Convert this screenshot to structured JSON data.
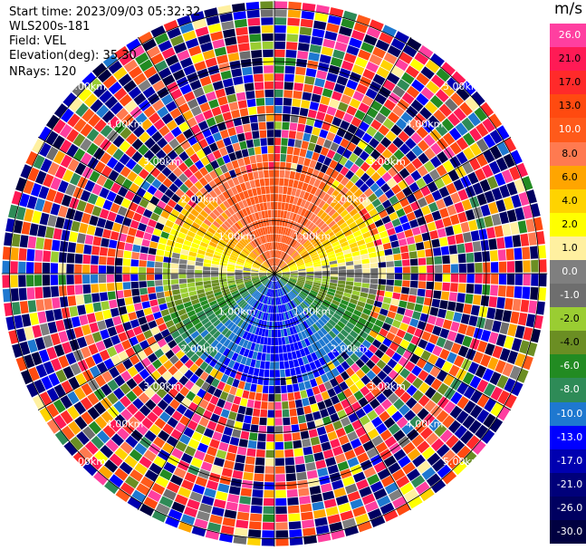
{
  "header": {
    "start_time": "Start time: 2023/09/03 05:32:32",
    "instrument": "WLS200s-181",
    "field": "Field: VEL",
    "elevation": "Elevation(deg): 35.30",
    "nrays": "NRays: 120"
  },
  "colorbar": {
    "unit": "m/s",
    "levels": [
      {
        "label": "26.0",
        "color": "#ff3fa0",
        "text_color": "#ffffff"
      },
      {
        "label": "21.0",
        "color": "#ff1a55",
        "text_color": "#000000"
      },
      {
        "label": "17.0",
        "color": "#ff2a2a",
        "text_color": "#000000"
      },
      {
        "label": "13.0",
        "color": "#ff4a10",
        "text_color": "#000000"
      },
      {
        "label": "10.0",
        "color": "#ff5a1a",
        "text_color": "#ffffff"
      },
      {
        "label": "8.0",
        "color": "#ff7a50",
        "text_color": "#000000"
      },
      {
        "label": "6.0",
        "color": "#ffa500",
        "text_color": "#000000"
      },
      {
        "label": "4.0",
        "color": "#ffd300",
        "text_color": "#000000"
      },
      {
        "label": "2.0",
        "color": "#ffff00",
        "text_color": "#000000"
      },
      {
        "label": "1.0",
        "color": "#fff0a0",
        "text_color": "#000000"
      },
      {
        "label": "0.0",
        "color": "#7f7f7f",
        "text_color": "#ffffff"
      },
      {
        "label": "-1.0",
        "color": "#6e6e6e",
        "text_color": "#ffffff"
      },
      {
        "label": "-2.0",
        "color": "#9acd32",
        "text_color": "#000000"
      },
      {
        "label": "-4.0",
        "color": "#6b8e23",
        "text_color": "#000000"
      },
      {
        "label": "-6.0",
        "color": "#228b22",
        "text_color": "#ffffff"
      },
      {
        "label": "-8.0",
        "color": "#2e8b57",
        "text_color": "#ffffff"
      },
      {
        "label": "-10.0",
        "color": "#1e78d0",
        "text_color": "#ffffff"
      },
      {
        "label": "-13.0",
        "color": "#0000ff",
        "text_color": "#ffffff"
      },
      {
        "label": "-17.0",
        "color": "#0000b0",
        "text_color": "#ffffff"
      },
      {
        "label": "-21.0",
        "color": "#00007a",
        "text_color": "#ffffff"
      },
      {
        "label": "-26.0",
        "color": "#000060",
        "text_color": "#ffffff"
      },
      {
        "label": "-30.0",
        "color": "#000040",
        "text_color": "#ffffff"
      }
    ]
  },
  "chart_data": {
    "type": "heatmap",
    "projection": "polar (plan position indicator)",
    "field": "VEL",
    "units": "m/s",
    "n_rays": 120,
    "range_rings_km": [
      1.0,
      2.0,
      3.0,
      4.0,
      5.0
    ],
    "ring_labels": [
      "1.00km",
      "2.00km",
      "3.00km",
      "4.00km",
      "5.00km"
    ],
    "max_range_km": 5.15,
    "spoke_angles_deg": [
      0,
      30,
      60,
      90,
      120,
      150,
      180,
      210,
      240,
      270,
      300,
      330
    ],
    "pattern_note": "coherent velocity field within ~2.2 km: positive (orange/yellow) toward north, near zero along east-west axis, negative (green/blue) toward south; noisy random velocities beyond"
  }
}
